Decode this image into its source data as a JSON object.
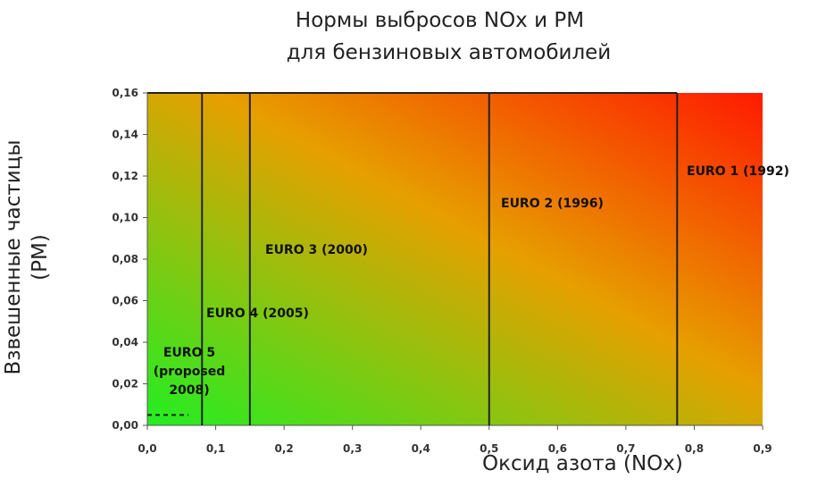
{
  "title_line1": "Нормы выбросов NOx и PM",
  "title_line2": "для бензиновых  автомобилей",
  "ylabel_line1": "Взвешенные частицы",
  "ylabel_line2": "(PM)",
  "xlabel": "Оксид азота (NOx)",
  "colors": {
    "low": "#22ee22",
    "high": "#ff1a00",
    "line": "#222222"
  },
  "chart_data": {
    "type": "area",
    "title": "Нормы выбросов NOx и PM для бензиновых  автомобилей",
    "xlabel": "Оксид азота (NOx)",
    "ylabel": "Взвешенные частицы (PM)",
    "xlim": [
      0.0,
      0.9
    ],
    "ylim": [
      0.0,
      0.16
    ],
    "x_ticks": [
      "0,0",
      "0,1",
      "0,2",
      "0,3",
      "0,4",
      "0,5",
      "0,6",
      "0,7",
      "0,8",
      "0,9"
    ],
    "y_ticks": [
      "0,00",
      "0,02",
      "0,04",
      "0,06",
      "0,08",
      "0,10",
      "0,12",
      "0,14",
      "0,16"
    ],
    "grid": false,
    "standards": [
      {
        "name": "EURO 1 (1992)",
        "nox_limit": 0.775,
        "label_lines": [
          "EURO 1 (1992)"
        ]
      },
      {
        "name": "EURO 2 (1996)",
        "nox_limit": 0.5,
        "label_lines": [
          "EURO 2 (1996)"
        ]
      },
      {
        "name": "EURO 3 (2000)",
        "nox_limit": 0.15,
        "label_lines": [
          "EURO 3 (2000)"
        ]
      },
      {
        "name": "EURO 4 (2005)",
        "nox_limit": 0.08,
        "label_lines": [
          "EURO 4 (2005)"
        ]
      },
      {
        "name": "EURO 5 (proposed 2008)",
        "nox_limit": 0.06,
        "pm_limit": 0.005,
        "label_lines": [
          "EURO 5",
          "(proposed",
          "2008)"
        ]
      }
    ]
  }
}
